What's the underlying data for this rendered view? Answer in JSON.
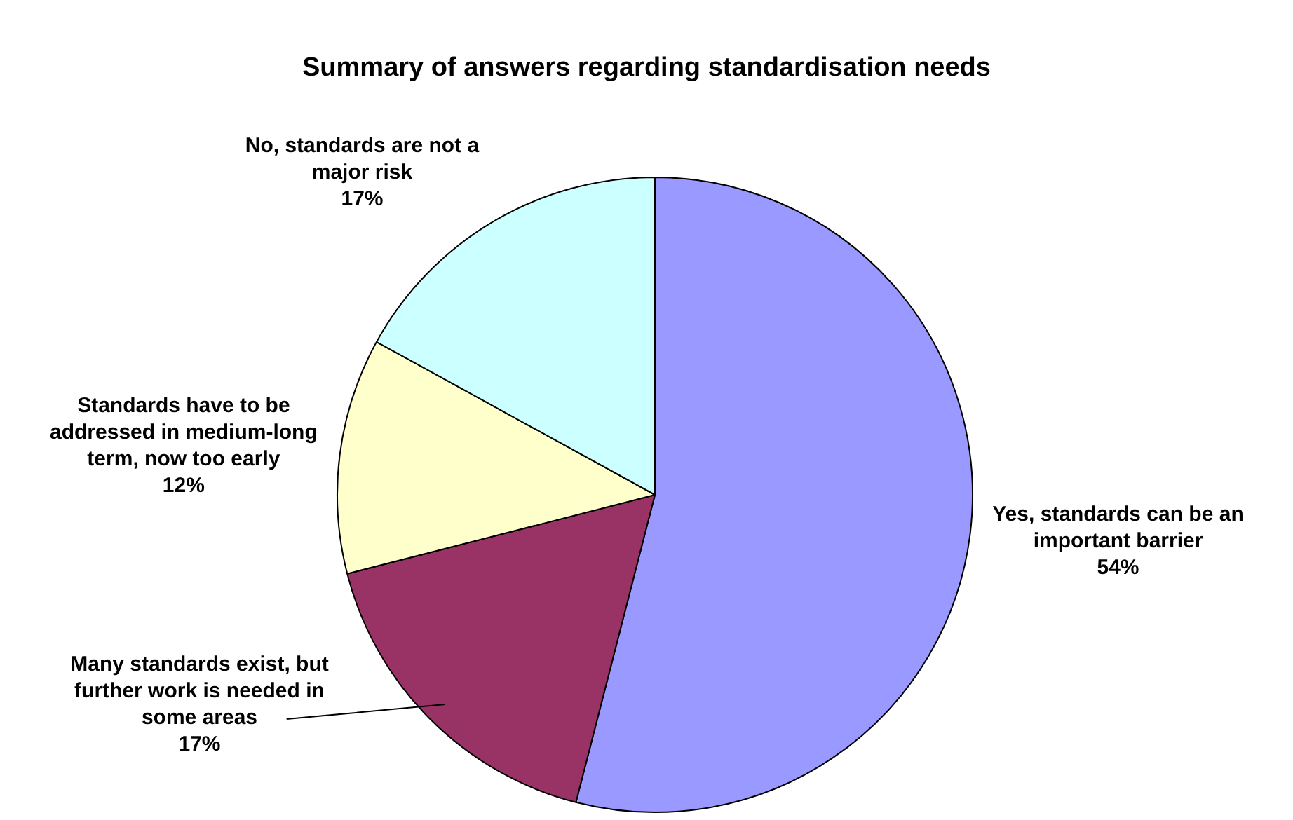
{
  "chart_data": {
    "type": "pie",
    "title": "Summary of answers regarding standardisation needs",
    "categories": [
      "Yes, standards can be an important barrier",
      "Many standards exist, but further work is needed in some areas",
      "Standards have to be addressed in medium-long term, now too early",
      "No, standards are not a major risk"
    ],
    "values": [
      54,
      17,
      12,
      17
    ],
    "colors": [
      "#9999ff",
      "#993366",
      "#ffffcc",
      "#ccffff"
    ],
    "value_labels": [
      "54%",
      "17%",
      "12%",
      "17%"
    ],
    "legend": false
  }
}
